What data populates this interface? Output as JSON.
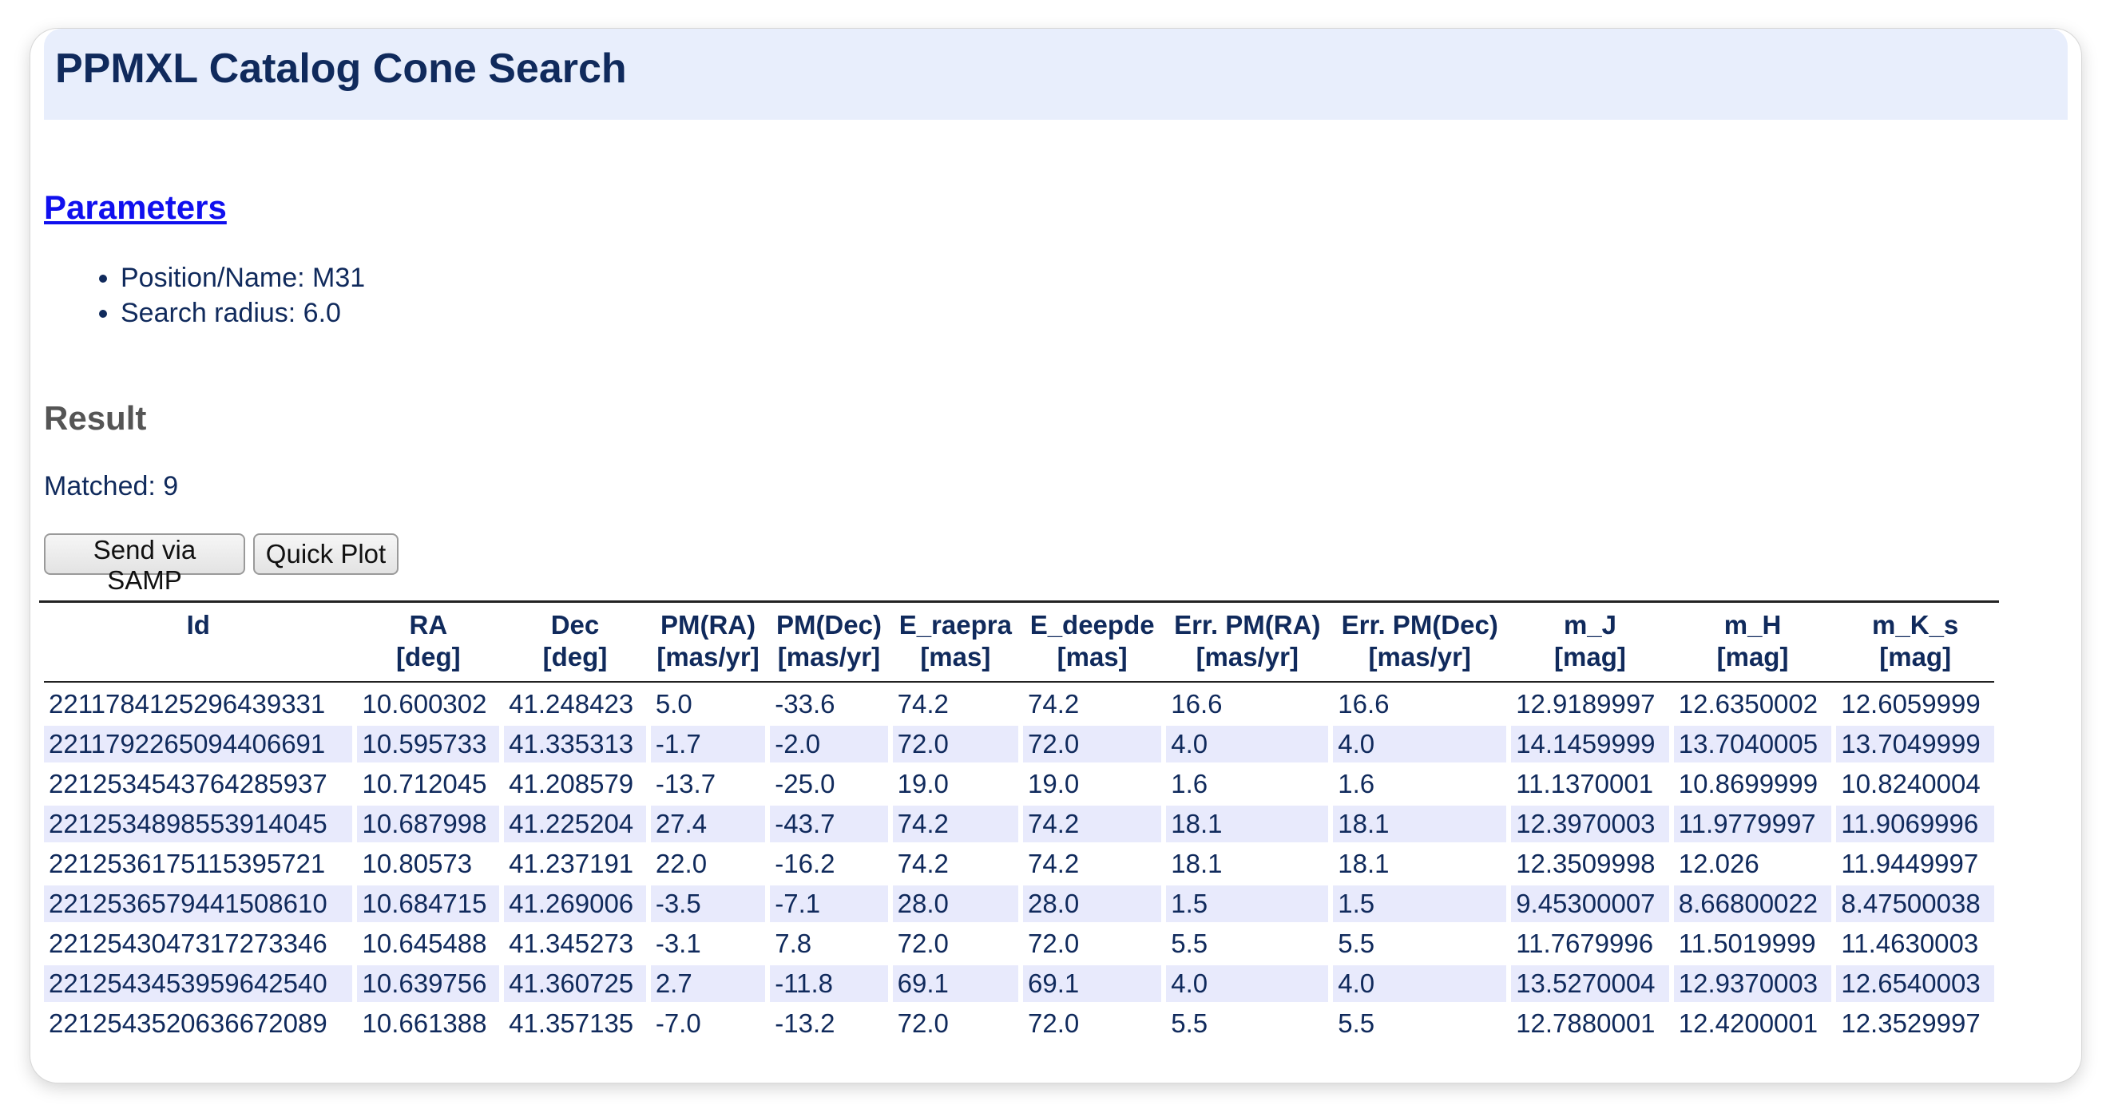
{
  "page": {
    "title": "PPMXL Catalog Cone Search",
    "params_heading": "Parameters",
    "params": [
      "Position/Name: M31",
      "Search radius: 6.0"
    ],
    "result_heading": "Result",
    "matched": "Matched: 9",
    "buttons": {
      "samp": "Send via SAMP",
      "plot": "Quick Plot"
    }
  },
  "table": {
    "columns": [
      {
        "name": "Id",
        "unit": ""
      },
      {
        "name": "RA",
        "unit": "[deg]"
      },
      {
        "name": "Dec",
        "unit": "[deg]"
      },
      {
        "name": "PM(RA)",
        "unit": "[mas/yr]"
      },
      {
        "name": "PM(Dec)",
        "unit": "[mas/yr]"
      },
      {
        "name": "E_raepra",
        "unit": "[mas]"
      },
      {
        "name": "E_deepde",
        "unit": "[mas]"
      },
      {
        "name": "Err. PM(RA)",
        "unit": "[mas/yr]"
      },
      {
        "name": "Err. PM(Dec)",
        "unit": "[mas/yr]"
      },
      {
        "name": "m_J",
        "unit": "[mag]"
      },
      {
        "name": "m_H",
        "unit": "[mag]"
      },
      {
        "name": "m_K_s",
        "unit": "[mag]"
      }
    ],
    "rows": [
      [
        "2211784125296439331",
        "10.600302",
        "41.248423",
        "5.0",
        "-33.6",
        "74.2",
        "74.2",
        "16.6",
        "16.6",
        "12.9189997",
        "12.6350002",
        "12.6059999"
      ],
      [
        "2211792265094406691",
        "10.595733",
        "41.335313",
        "-1.7",
        "-2.0",
        "72.0",
        "72.0",
        "4.0",
        "4.0",
        "14.1459999",
        "13.7040005",
        "13.7049999"
      ],
      [
        "2212534543764285937",
        "10.712045",
        "41.208579",
        "-13.7",
        "-25.0",
        "19.0",
        "19.0",
        "1.6",
        "1.6",
        "11.1370001",
        "10.8699999",
        "10.8240004"
      ],
      [
        "2212534898553914045",
        "10.687998",
        "41.225204",
        "27.4",
        "-43.7",
        "74.2",
        "74.2",
        "18.1",
        "18.1",
        "12.3970003",
        "11.9779997",
        "11.9069996"
      ],
      [
        "2212536175115395721",
        "10.80573",
        "41.237191",
        "22.0",
        "-16.2",
        "74.2",
        "74.2",
        "18.1",
        "18.1",
        "12.3509998",
        "12.026",
        "11.9449997"
      ],
      [
        "2212536579441508610",
        "10.684715",
        "41.269006",
        "-3.5",
        "-7.1",
        "28.0",
        "28.0",
        "1.5",
        "1.5",
        "9.45300007",
        "8.66800022",
        "8.47500038"
      ],
      [
        "2212543047317273346",
        "10.645488",
        "41.345273",
        "-3.1",
        "7.8",
        "72.0",
        "72.0",
        "5.5",
        "5.5",
        "11.7679996",
        "11.5019999",
        "11.4630003"
      ],
      [
        "2212543453959642540",
        "10.639756",
        "41.360725",
        "2.7",
        "-11.8",
        "69.1",
        "69.1",
        "4.0",
        "4.0",
        "13.5270004",
        "12.9370003",
        "12.6540003"
      ],
      [
        "2212543520636672089",
        "10.661388",
        "41.357135",
        "-7.0",
        "-13.2",
        "72.0",
        "72.0",
        "5.5",
        "5.5",
        "12.7880001",
        "12.4200001",
        "12.3529997"
      ]
    ]
  },
  "colors": {
    "text": "#102a5c",
    "title_bg": "#e8eefc",
    "link": "#1010ee",
    "heading_gray": "#555555",
    "alt_row": "#e8eafc"
  }
}
